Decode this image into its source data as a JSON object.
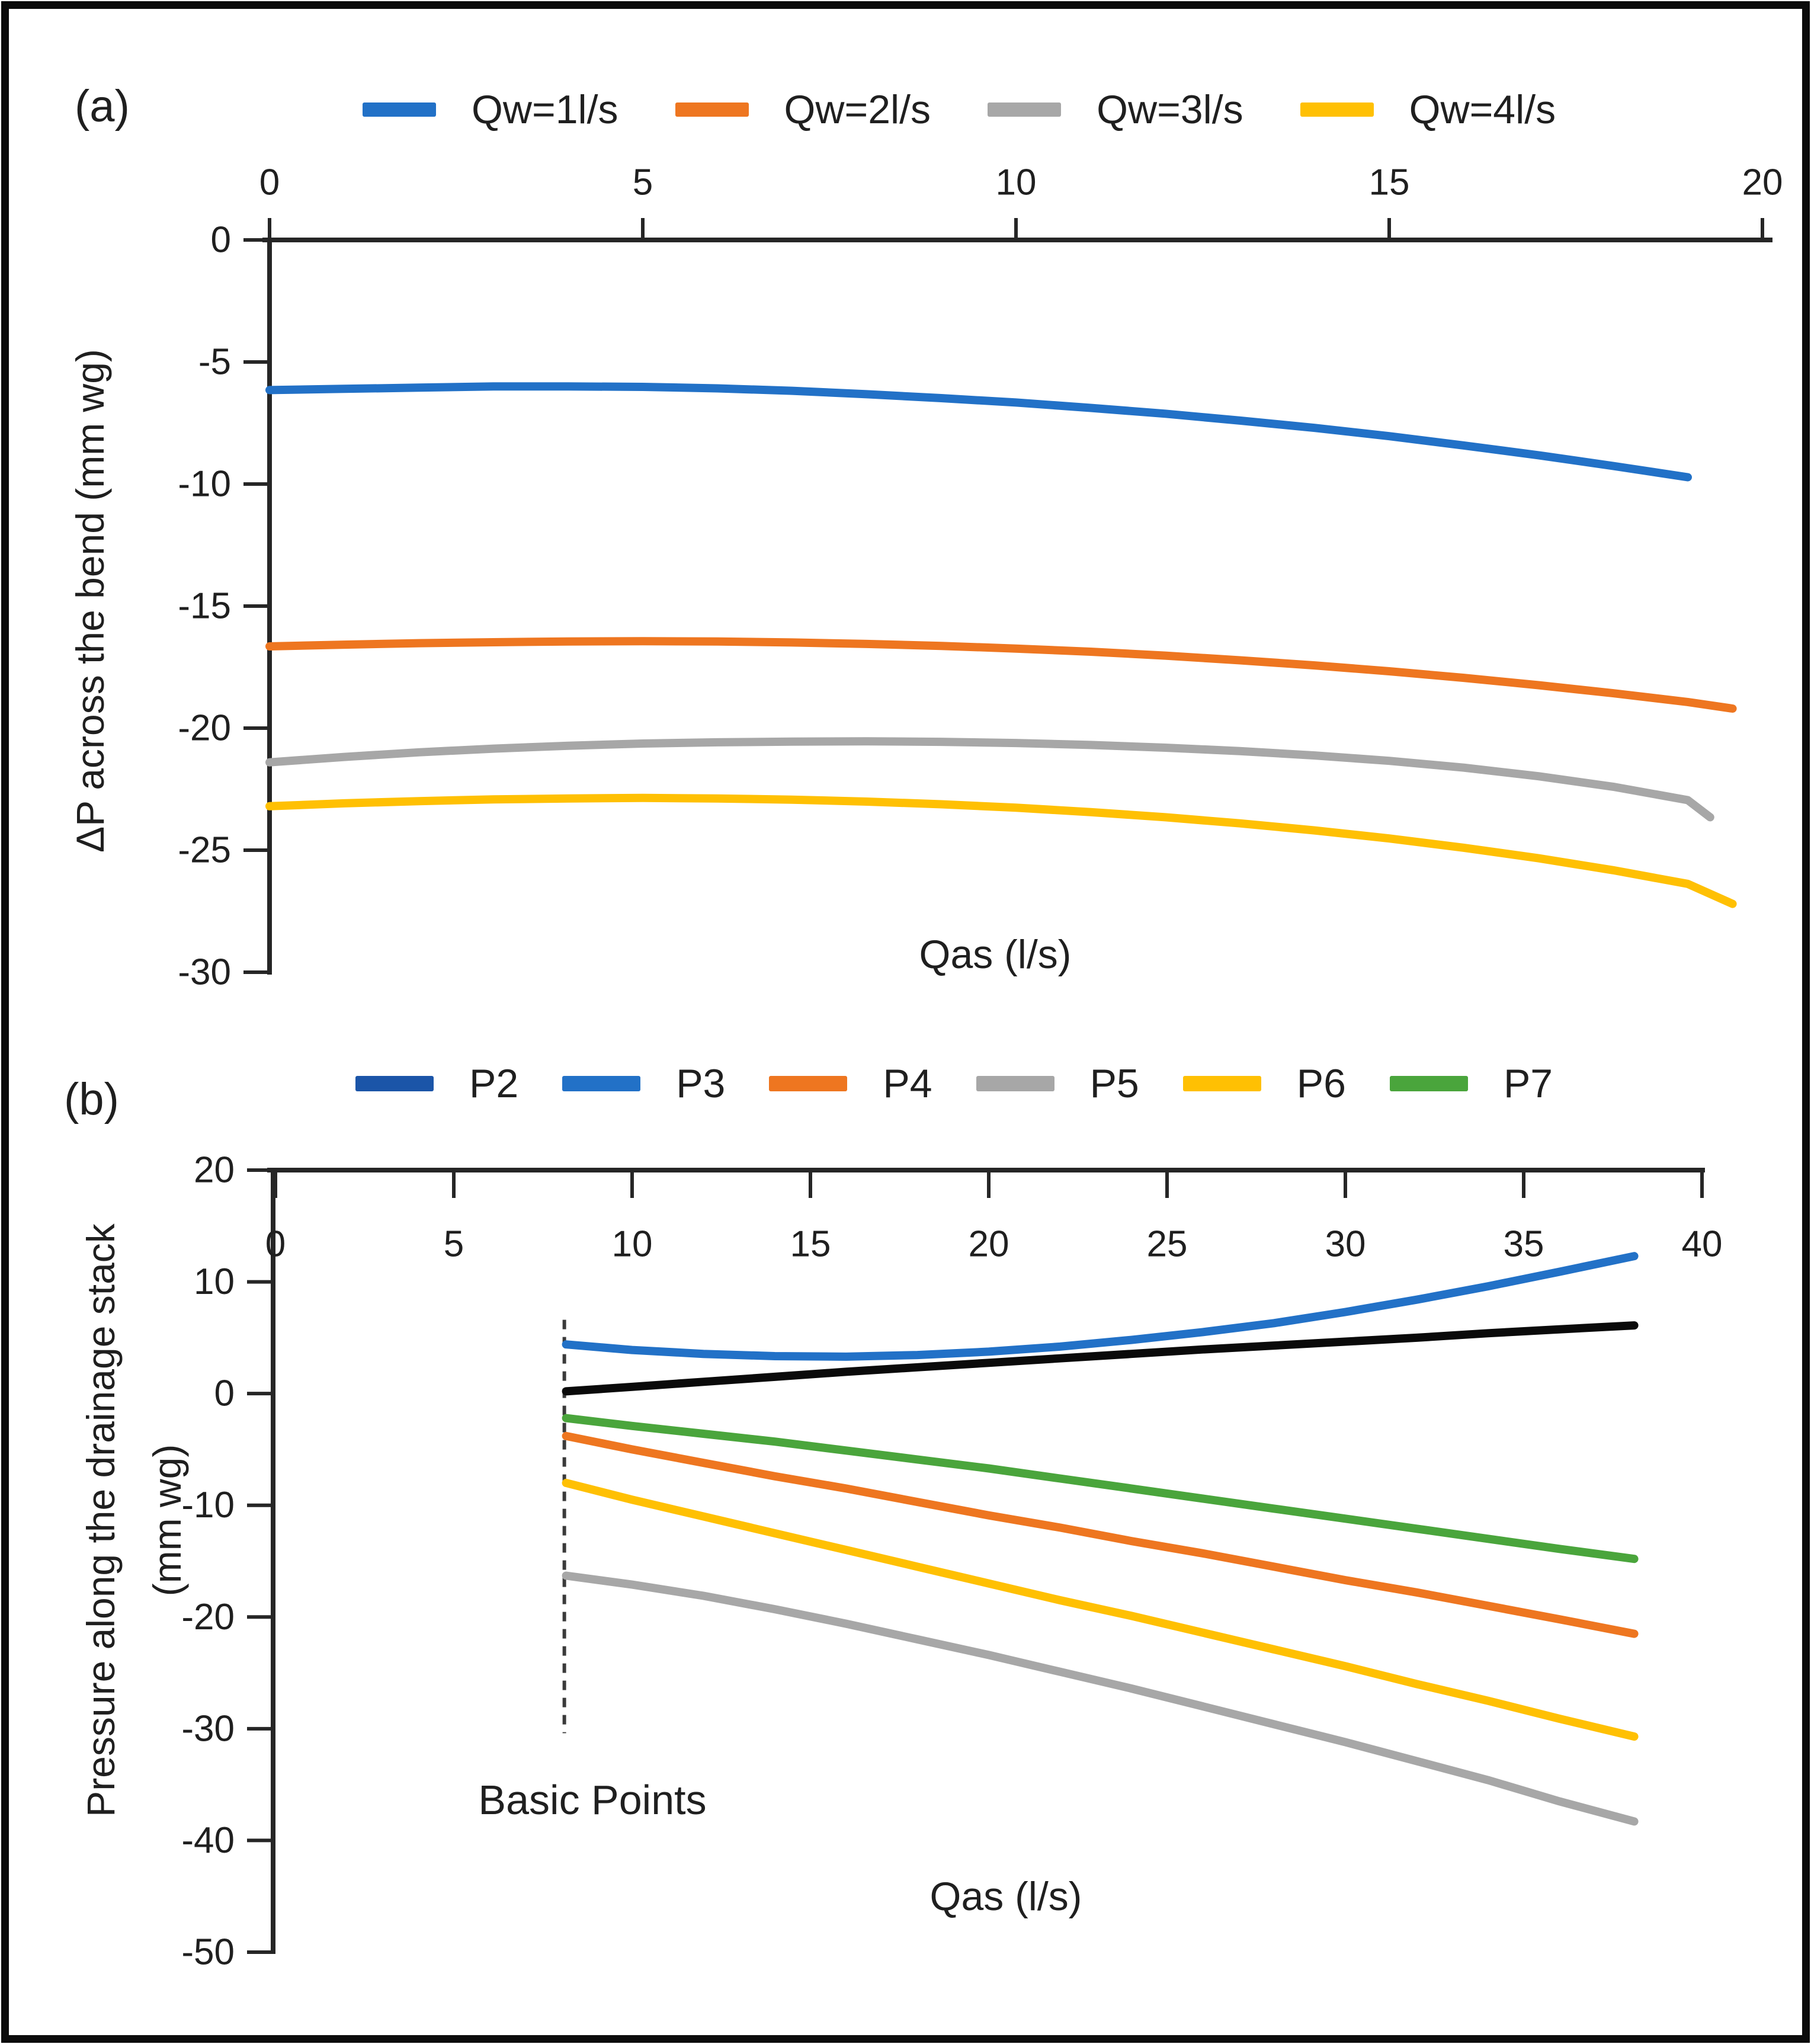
{
  "chart_data": [
    {
      "id": "a",
      "type": "line",
      "panel_label": "(a)",
      "xlabel": "Qas (l/s)",
      "ylabel": "ΔP across the bend (mm wg)",
      "x_axis_side": "top",
      "legend_position": "top",
      "grid": false,
      "xlim": [
        0,
        20
      ],
      "ylim": [
        -30,
        0
      ],
      "x_ticks": [
        0,
        5,
        10,
        15,
        20
      ],
      "y_ticks": [
        0,
        -5,
        -10,
        -15,
        -20,
        -25,
        -30
      ],
      "series": [
        {
          "name": "Qw=1l/s",
          "color": "#2271c7",
          "x": [
            0,
            1,
            2,
            3,
            4,
            5,
            6,
            7,
            8,
            9,
            10,
            11,
            12,
            13,
            14,
            15,
            16,
            17,
            18,
            19
          ],
          "y": [
            -6.15,
            -6.1,
            -6.05,
            -6.0,
            -6.0,
            -6.02,
            -6.08,
            -6.18,
            -6.32,
            -6.48,
            -6.66,
            -6.88,
            -7.12,
            -7.4,
            -7.7,
            -8.04,
            -8.42,
            -8.82,
            -9.26,
            -9.72
          ]
        },
        {
          "name": "Qw=2l/s",
          "color": "#ee7620",
          "x": [
            0,
            1,
            2,
            3,
            4,
            5,
            6,
            7,
            8,
            9,
            10,
            11,
            12,
            13,
            14,
            15,
            16,
            17,
            18,
            19,
            19.6
          ],
          "y": [
            -16.65,
            -16.58,
            -16.52,
            -16.48,
            -16.45,
            -16.44,
            -16.45,
            -16.49,
            -16.55,
            -16.63,
            -16.74,
            -16.87,
            -17.03,
            -17.22,
            -17.43,
            -17.67,
            -17.94,
            -18.24,
            -18.57,
            -18.93,
            -19.2
          ]
        },
        {
          "name": "Qw=3l/s",
          "color": "#a7a7a7",
          "x": [
            0,
            1,
            2,
            3,
            4,
            5,
            6,
            7,
            8,
            9,
            10,
            11,
            12,
            13,
            14,
            15,
            16,
            17,
            18,
            19,
            19.3
          ],
          "y": [
            -21.4,
            -21.18,
            -20.99,
            -20.84,
            -20.72,
            -20.63,
            -20.58,
            -20.55,
            -20.54,
            -20.56,
            -20.61,
            -20.69,
            -20.8,
            -20.94,
            -21.12,
            -21.34,
            -21.62,
            -21.97,
            -22.4,
            -22.95,
            -23.65
          ]
        },
        {
          "name": "Qw=4l/s",
          "color": "#ffc003",
          "x": [
            0,
            1,
            2,
            3,
            4,
            5,
            6,
            7,
            8,
            9,
            10,
            11,
            12,
            13,
            14,
            15,
            16,
            17,
            18,
            19,
            19.6
          ],
          "y": [
            -23.2,
            -23.08,
            -22.99,
            -22.92,
            -22.88,
            -22.86,
            -22.88,
            -22.93,
            -23.01,
            -23.12,
            -23.26,
            -23.44,
            -23.65,
            -23.9,
            -24.19,
            -24.52,
            -24.9,
            -25.33,
            -25.82,
            -26.38,
            -27.2
          ]
        }
      ]
    },
    {
      "id": "b",
      "type": "line",
      "panel_label": "(b)",
      "xlabel": "Qas (l/s)",
      "ylabel": "Pressure along the drainage stack",
      "ylabel_line2": "(mm wg)",
      "x_axis_side": "top",
      "legend_position": "top",
      "grid": false,
      "xlim": [
        0,
        40
      ],
      "ylim": [
        -50,
        20
      ],
      "x_ticks": [
        0,
        5,
        10,
        15,
        20,
        25,
        30,
        35,
        40
      ],
      "y_ticks": [
        20,
        10,
        0,
        -10,
        -20,
        -30,
        -40,
        -50
      ],
      "annotation": {
        "text": "Basic Points",
        "x": 9,
        "y": -37
      },
      "dashed_line": {
        "x": 8.1,
        "y_top": 6.6,
        "y_bottom": -30.4
      },
      "series": [
        {
          "name": "P2",
          "color": "#0a0a0a",
          "legend_color": "#1b55a8",
          "x": [
            8.15,
            10,
            12,
            14,
            16,
            18,
            20,
            22,
            24,
            26,
            28,
            30,
            32,
            34,
            36,
            38.1
          ],
          "y": [
            0.2,
            0.6,
            1.05,
            1.5,
            1.95,
            2.35,
            2.75,
            3.15,
            3.55,
            3.95,
            4.3,
            4.65,
            5.0,
            5.4,
            5.75,
            6.1
          ]
        },
        {
          "name": "P3",
          "color": "#2271c7",
          "x": [
            8.15,
            10,
            12,
            14,
            16,
            18,
            20,
            22,
            24,
            26,
            28,
            30,
            32,
            34,
            36,
            38.1
          ],
          "y": [
            4.4,
            3.9,
            3.55,
            3.35,
            3.3,
            3.45,
            3.75,
            4.2,
            4.8,
            5.5,
            6.3,
            7.3,
            8.4,
            9.6,
            10.9,
            12.3
          ]
        },
        {
          "name": "P4",
          "color": "#ee7620",
          "x": [
            8.15,
            10,
            12,
            14,
            16,
            18,
            20,
            22,
            24,
            26,
            28,
            30,
            32,
            34,
            36,
            38.1
          ],
          "y": [
            -3.8,
            -5.0,
            -6.2,
            -7.4,
            -8.5,
            -9.7,
            -10.9,
            -12.0,
            -13.2,
            -14.3,
            -15.5,
            -16.7,
            -17.8,
            -19.0,
            -20.2,
            -21.5
          ]
        },
        {
          "name": "P5",
          "color": "#a7a7a7",
          "x": [
            8.15,
            10,
            12,
            14,
            16,
            18,
            20,
            22,
            24,
            26,
            28,
            30,
            32,
            34,
            36,
            38.1
          ],
          "y": [
            -16.3,
            -17.1,
            -18.1,
            -19.3,
            -20.6,
            -22.0,
            -23.4,
            -24.9,
            -26.4,
            -28.0,
            -29.6,
            -31.2,
            -32.9,
            -34.6,
            -36.5,
            -38.3
          ]
        },
        {
          "name": "P6",
          "color": "#ffc003",
          "x": [
            8.15,
            10,
            12,
            14,
            16,
            18,
            20,
            22,
            24,
            26,
            28,
            30,
            32,
            34,
            36,
            38.1
          ],
          "y": [
            -8.0,
            -9.5,
            -11.0,
            -12.5,
            -14.0,
            -15.5,
            -17.0,
            -18.5,
            -19.9,
            -21.4,
            -22.9,
            -24.4,
            -26.0,
            -27.5,
            -29.1,
            -30.7
          ]
        },
        {
          "name": "P7",
          "color": "#4aa53c",
          "x": [
            8.15,
            10,
            12,
            14,
            16,
            18,
            20,
            22,
            24,
            26,
            28,
            30,
            32,
            34,
            36,
            38.1
          ],
          "y": [
            -2.2,
            -2.9,
            -3.6,
            -4.3,
            -5.1,
            -5.9,
            -6.7,
            -7.6,
            -8.5,
            -9.4,
            -10.3,
            -11.2,
            -12.1,
            -13.0,
            -13.9,
            -14.8
          ]
        }
      ]
    }
  ]
}
